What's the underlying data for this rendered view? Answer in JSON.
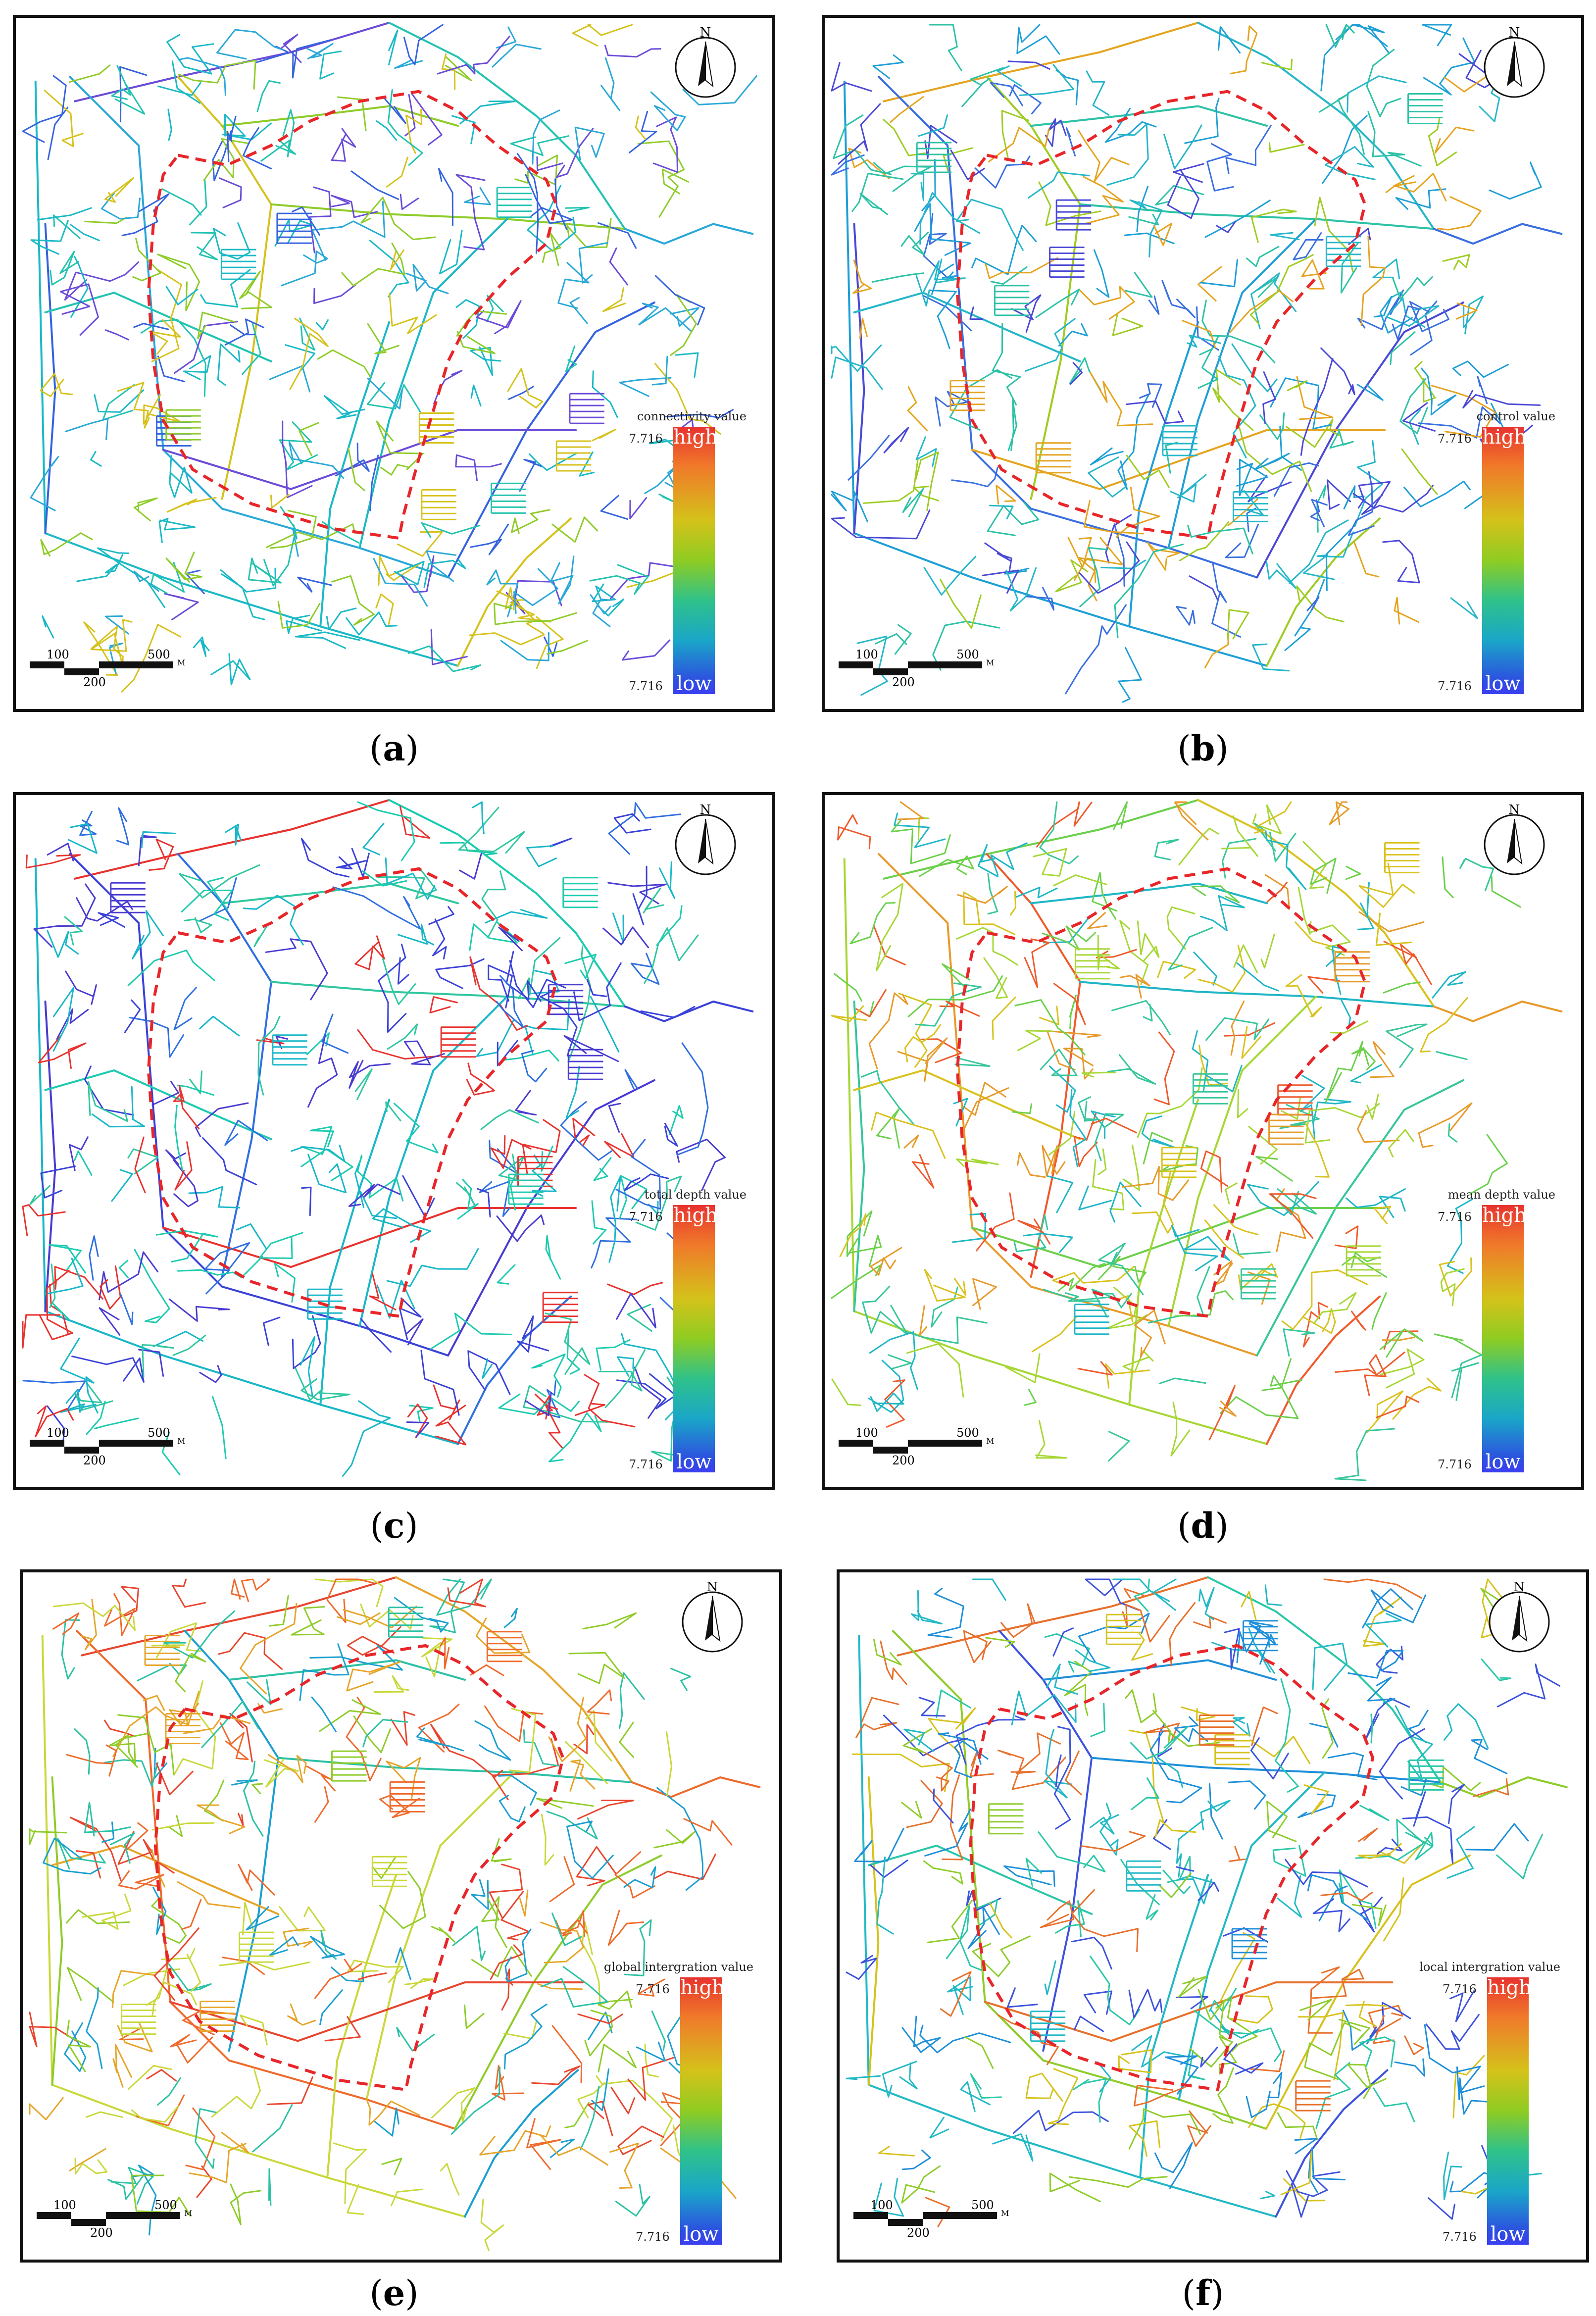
{
  "panels": [
    {
      "id": "a",
      "caption": "a",
      "legend_title": "connectivity value",
      "legend_max": "7.716",
      "legend_min": "7.716",
      "high": "high",
      "low": "low",
      "route_shape": "A"
    },
    {
      "id": "b",
      "caption": "b",
      "legend_title": "control value",
      "legend_max": "7.716",
      "legend_min": "7.716",
      "high": "high",
      "low": "low",
      "route_shape": "A"
    },
    {
      "id": "c",
      "caption": "c",
      "legend_title": "total depth value",
      "legend_max": "7.716",
      "legend_min": "7.716",
      "high": "high",
      "low": "low",
      "route_shape": "A"
    },
    {
      "id": "d",
      "caption": "d",
      "legend_title": "mean depth value",
      "legend_max": "7.716",
      "legend_min": "7.716",
      "high": "high",
      "low": "low",
      "route_shape": "A"
    },
    {
      "id": "e",
      "caption": "e",
      "legend_title": "global intergration value",
      "legend_max": "7.716",
      "legend_min": "7.716",
      "high": "high",
      "low": "low",
      "route_shape": "A"
    },
    {
      "id": "f",
      "caption": "f",
      "legend_title": "local intergration value",
      "legend_max": "7.716",
      "legend_min": "7.716",
      "high": "high",
      "low": "low",
      "route_shape": "A"
    }
  ],
  "north_label": "N",
  "scale": {
    "label_100": "100",
    "label_500": "500",
    "label_200": "200",
    "unit": "M"
  },
  "colors": {
    "panel_a_main": "#1ab9c6",
    "panel_b_main": "#1e9fd6",
    "panel_c_main": "#17b3c9",
    "panel_c_dark": "#3b42d8",
    "panel_d_main": "#9fd63a",
    "panel_e_main": "#c9d83a",
    "panel_f_main": "#22b9c6",
    "route": "#e8262a"
  }
}
